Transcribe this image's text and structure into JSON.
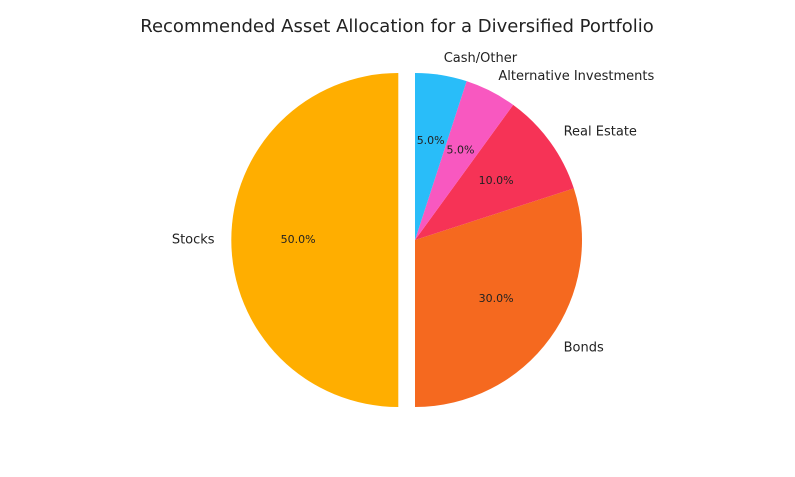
{
  "chart_data": {
    "type": "pie",
    "title": "Recommended Asset Allocation for a Diversified Portfolio",
    "categories": [
      "Stocks",
      "Bonds",
      "Real Estate",
      "Alternative Investments",
      "Cash/Other"
    ],
    "values": [
      50,
      30,
      10,
      5,
      5
    ],
    "value_labels": [
      "50.0%",
      "30.0%",
      "10.0%",
      "5.0%",
      "5.0%"
    ],
    "colors": [
      "#ffae00",
      "#f5691f",
      "#f63356",
      "#f858c0",
      "#29bdf9"
    ],
    "explode": [
      0.1,
      0,
      0,
      0,
      0
    ],
    "start_angle": 90
  }
}
